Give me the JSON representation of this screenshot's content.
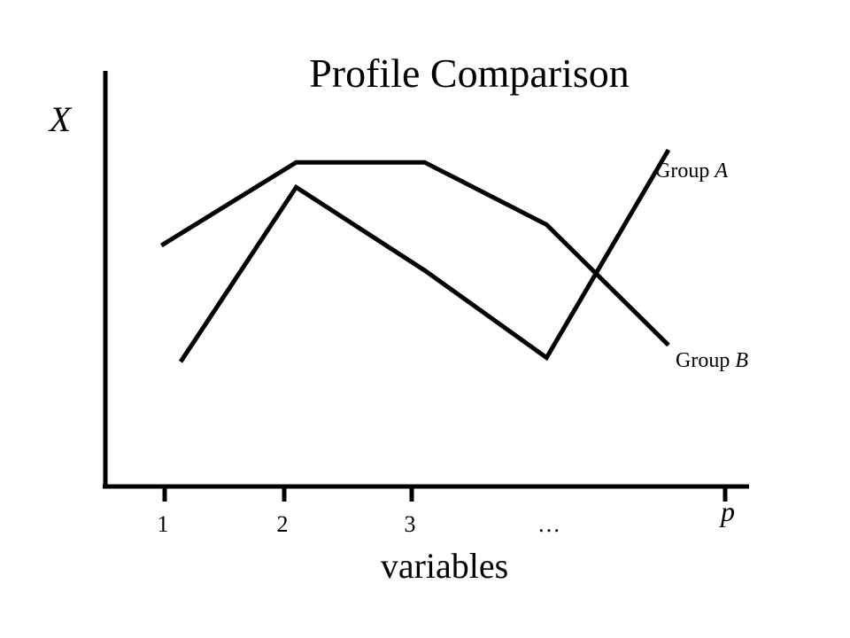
{
  "chart_data": {
    "type": "line",
    "title": "Profile Comparison",
    "ylabel": "X",
    "xlabel": "variables",
    "categories": [
      "1",
      "2",
      "3",
      "…",
      "p"
    ],
    "x": [
      1,
      2,
      3,
      4,
      5
    ],
    "xlim": [
      0.5,
      5.5
    ],
    "ylim": [
      0,
      10
    ],
    "grid": false,
    "series": [
      {
        "name": "Group A",
        "name_prefix": "Group ",
        "name_var": "A",
        "x": [
          1.1,
          2.0,
          3.0,
          3.95,
          4.9
        ],
        "values": [
          3.0,
          7.2,
          5.2,
          3.1,
          8.1
        ]
      },
      {
        "name": "Group B",
        "name_prefix": "Group ",
        "name_var": "B",
        "x": [
          0.95,
          2.0,
          3.0,
          3.95,
          4.9
        ],
        "values": [
          5.8,
          7.8,
          7.8,
          6.3,
          3.4
        ]
      }
    ],
    "legend_placement": "right, at line ends"
  }
}
